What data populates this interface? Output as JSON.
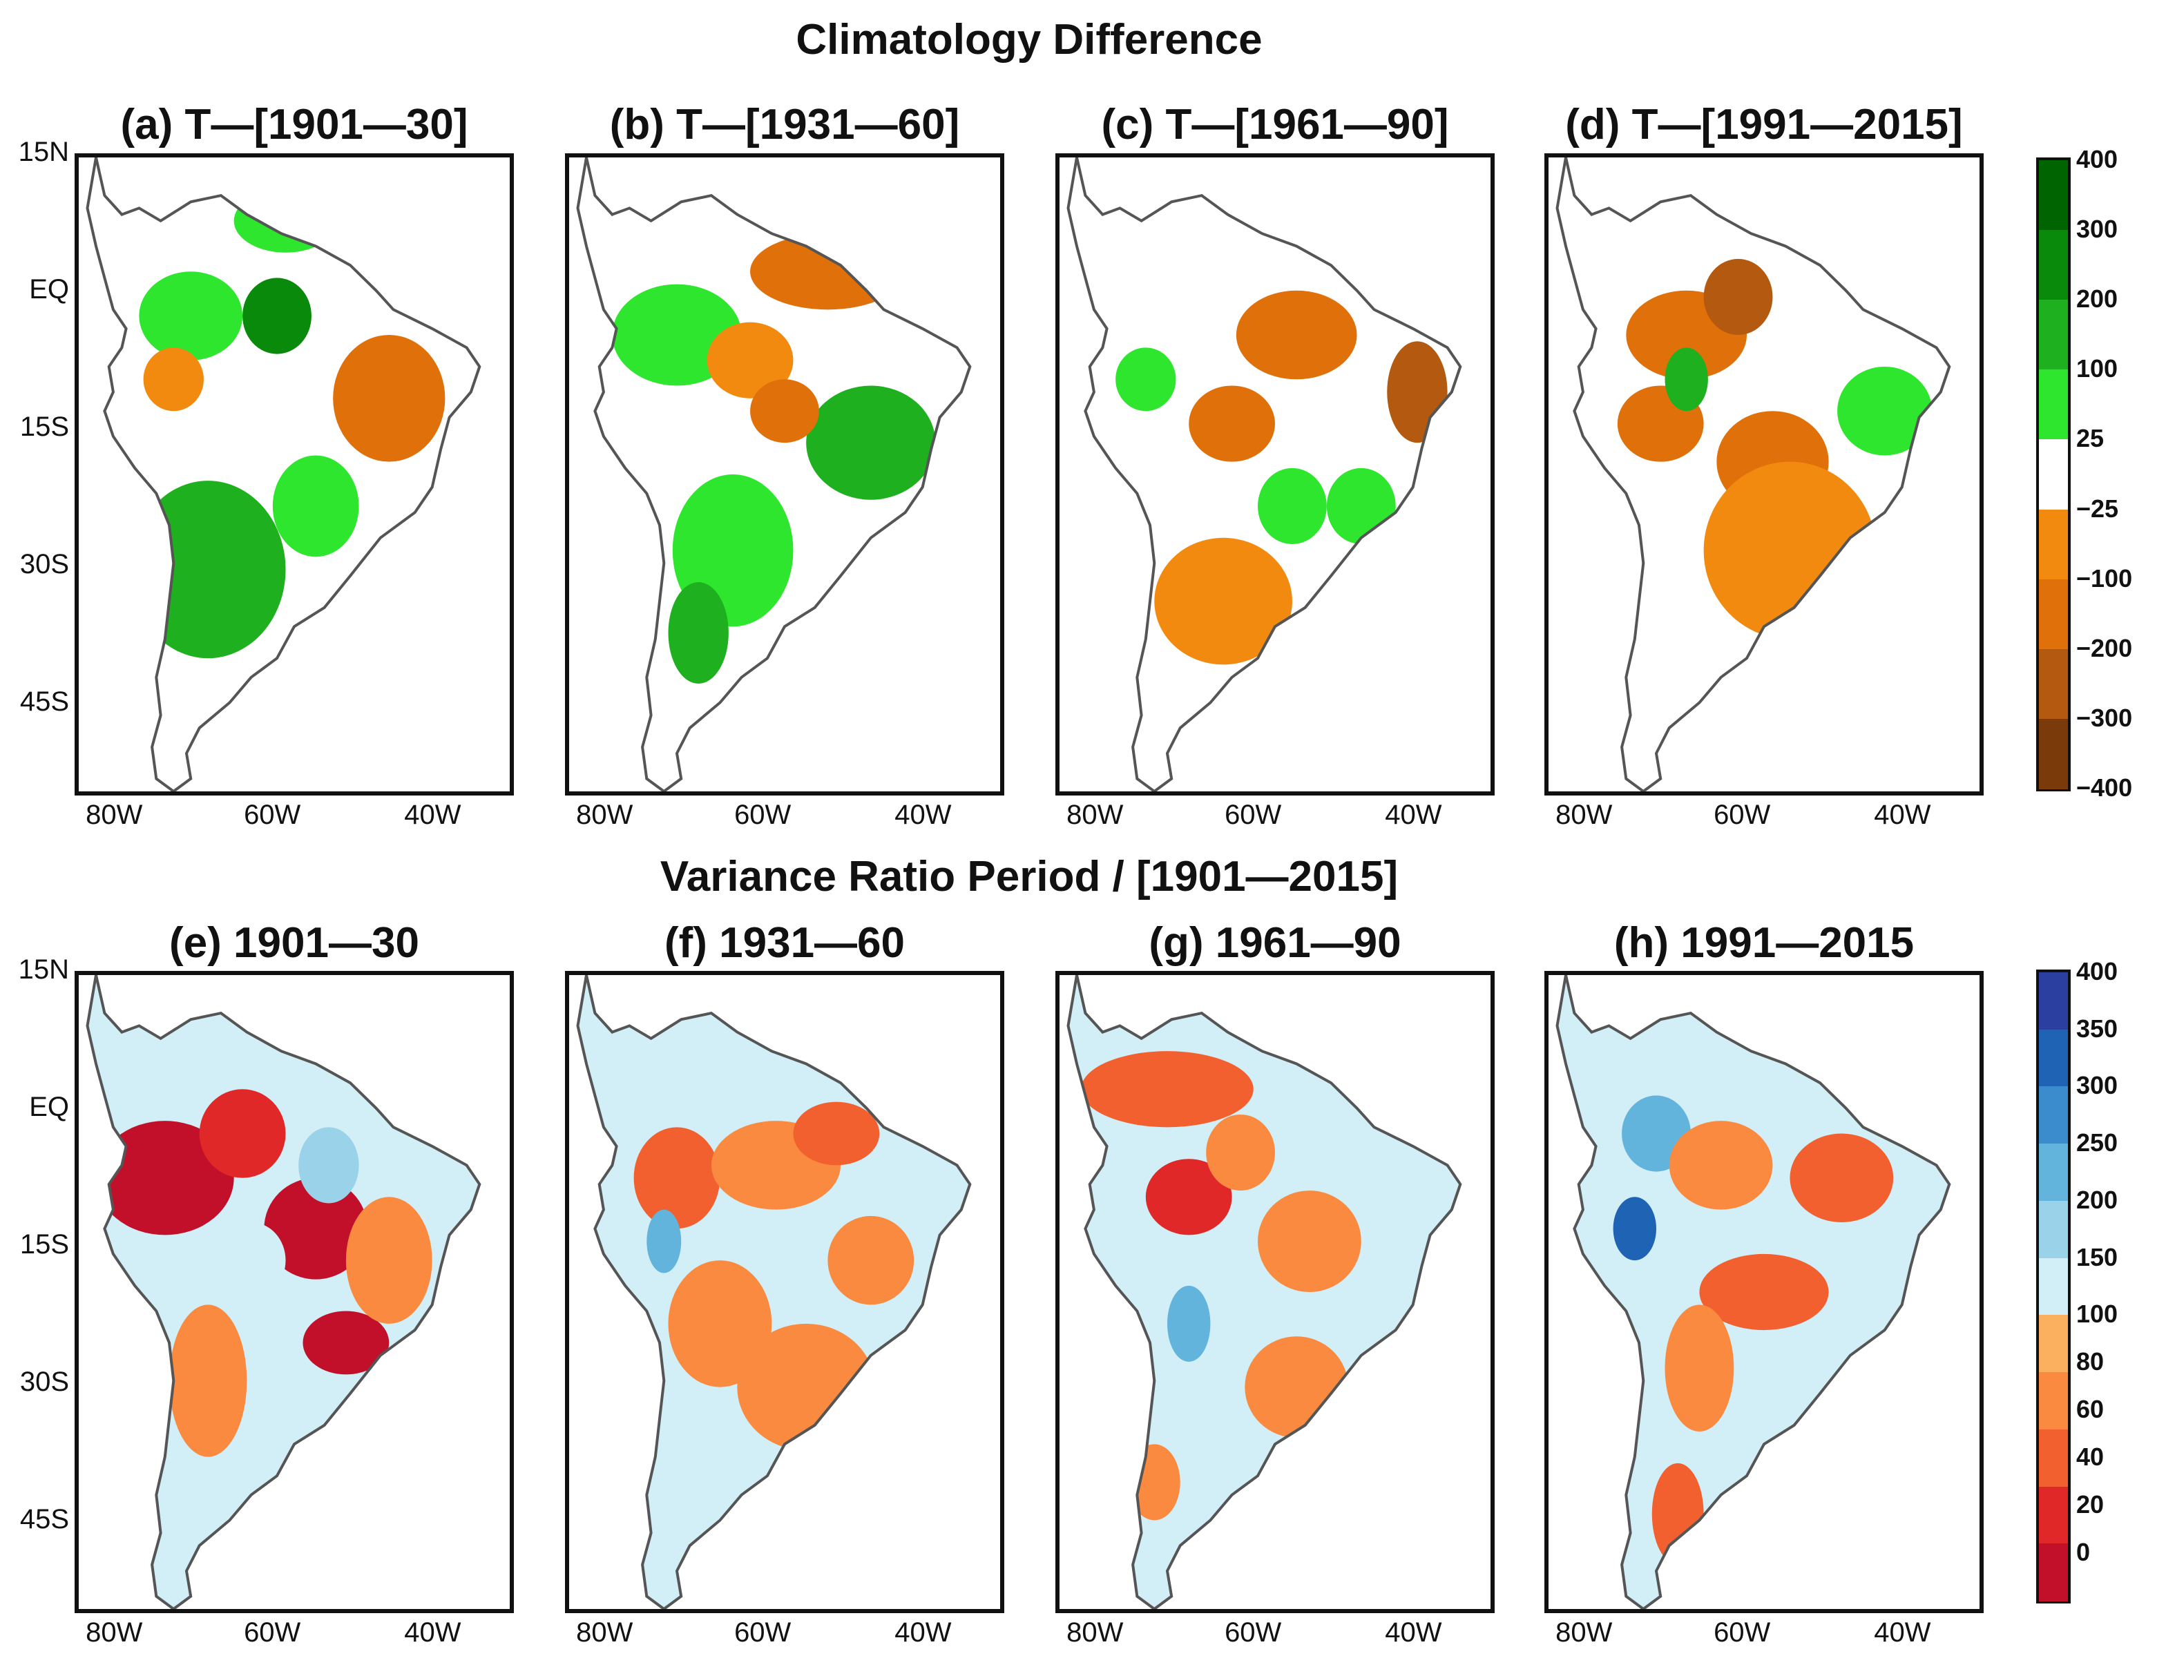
{
  "chart_data": [
    {
      "type": "heatmap",
      "title": "Climatology Difference",
      "panels": [
        {
          "label": "(a) T—[1901—30]",
          "period": "1901-1930"
        },
        {
          "label": "(b) T—[1931—60]",
          "period": "1931-1960"
        },
        {
          "label": "(c) T—[1961—90]",
          "period": "1961-1990"
        },
        {
          "label": "(d) T—[1991—2015]",
          "period": "1991-2015"
        }
      ],
      "y_ticks": [
        "15N",
        "EQ",
        "15S",
        "30S",
        "45S"
      ],
      "x_ticks": [
        "80W",
        "60W",
        "40W"
      ],
      "colorbar": {
        "tick_labels": [
          "400",
          "300",
          "200",
          "100",
          "25",
          "−25",
          "−100",
          "−200",
          "−300",
          "−400"
        ],
        "levels": [
          400,
          300,
          200,
          100,
          25,
          -25,
          -100,
          -200,
          -300,
          -400
        ],
        "colors": [
          "#006400",
          "#0a8a0a",
          "#1eb01e",
          "#2ee62e",
          "#ffffff",
          "#f28a10",
          "#e0700a",
          "#b45a10",
          "#7a3a0a"
        ]
      }
    },
    {
      "type": "heatmap",
      "title": "Variance Ratio Period / [1901—2015]",
      "panels": [
        {
          "label": "(e) 1901—30",
          "period": "1901-1930"
        },
        {
          "label": "(f) 1931—60",
          "period": "1931-1960"
        },
        {
          "label": "(g) 1961—90",
          "period": "1961-1990"
        },
        {
          "label": "(h) 1991—2015",
          "period": "1991-2015"
        }
      ],
      "y_ticks": [
        "15N",
        "EQ",
        "15S",
        "30S",
        "45S"
      ],
      "x_ticks": [
        "80W",
        "60W",
        "40W"
      ],
      "colorbar": {
        "tick_labels": [
          "400",
          "350",
          "300",
          "250",
          "200",
          "150",
          "100",
          "80",
          "60",
          "40",
          "20",
          "0"
        ],
        "levels": [
          400,
          350,
          300,
          250,
          200,
          150,
          100,
          80,
          60,
          40,
          20,
          0
        ],
        "colors": [
          "#2a3fa0",
          "#1f63b5",
          "#3a8ccc",
          "#62b4dc",
          "#9ad2ea",
          "#d2eef6",
          "#fbb060",
          "#f98a40",
          "#f26030",
          "#e02828",
          "#c2102a"
        ]
      }
    }
  ]
}
